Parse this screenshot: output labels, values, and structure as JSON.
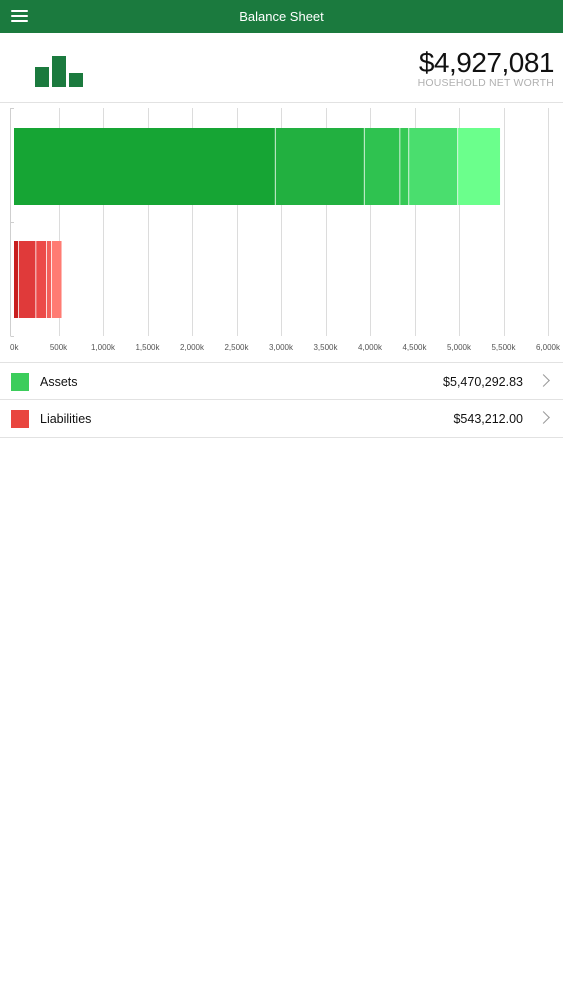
{
  "header": {
    "title": "Balance Sheet",
    "menu_icon": "hamburger-menu-icon",
    "bar_color": "#1b7a3e"
  },
  "summary": {
    "logo_icon": "bar-chart-logo-icon",
    "net_worth": "$4,927,081",
    "net_worth_label": "HOUSEHOLD NET WORTH"
  },
  "chart_data": {
    "type": "bar",
    "orientation": "horizontal",
    "stacked": true,
    "grid": true,
    "x_unit": "k",
    "xlim": [
      0,
      6000
    ],
    "x_ticks": [
      "0k",
      "500k",
      "1,000k",
      "1,500k",
      "2,000k",
      "2,500k",
      "3,000k",
      "3,500k",
      "4,000k",
      "4,500k",
      "5,000k",
      "5,500k",
      "6,000k"
    ],
    "x_tick_values": [
      0,
      500,
      1000,
      1500,
      2000,
      2500,
      3000,
      3500,
      4000,
      4500,
      5000,
      5500,
      6000
    ],
    "rows": [
      {
        "category": "Assets",
        "segment_values": [
          2940,
          1000,
          400,
          100,
          550,
          480
        ],
        "segment_colors": [
          "#16a534",
          "#22b040",
          "#2fc250",
          "#36c955",
          "#4ade6e",
          "#6bff8c"
        ]
      },
      {
        "category": "Liabilities",
        "segment_values": [
          55,
          195,
          120,
          55,
          118
        ],
        "segment_colors": [
          "#c81e1e",
          "#e03a3a",
          "#ec4a48",
          "#f25f5a",
          "#ff7b73"
        ]
      }
    ]
  },
  "legend": [
    {
      "label": "Assets",
      "value": "$5,470,292.83",
      "color": "#3bcd5b",
      "chevron_icon": "chevron-right-icon"
    },
    {
      "label": "Liabilities",
      "value": "$543,212.00",
      "color": "#e9463f",
      "chevron_icon": "chevron-right-icon"
    }
  ]
}
